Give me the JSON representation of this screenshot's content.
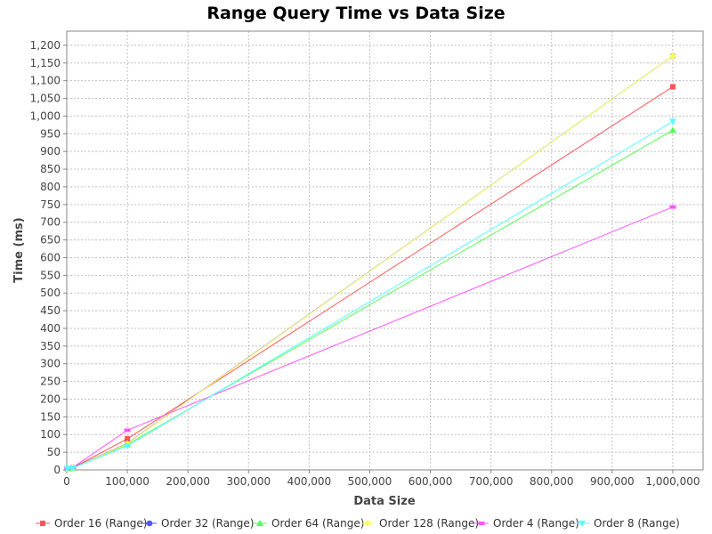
{
  "chart_data": {
    "type": "line",
    "title": "Range Query Time vs Data Size",
    "xlabel": "Data Size",
    "ylabel": "Time (ms)",
    "xlim": [
      0,
      1050000
    ],
    "ylim": [
      0,
      1240
    ],
    "x_ticks": [
      0,
      100000,
      200000,
      300000,
      400000,
      500000,
      600000,
      700000,
      800000,
      900000,
      1000000
    ],
    "x_tick_labels": [
      "0",
      "100,000",
      "200,000",
      "300,000",
      "400,000",
      "500,000",
      "600,000",
      "700,000",
      "800,000",
      "900,000",
      "1,000,000"
    ],
    "y_ticks": [
      0,
      50,
      100,
      150,
      200,
      250,
      300,
      350,
      400,
      450,
      500,
      550,
      600,
      650,
      700,
      750,
      800,
      850,
      900,
      950,
      1000,
      1050,
      1100,
      1150,
      1200
    ],
    "y_tick_labels": [
      "0",
      "50",
      "100",
      "150",
      "200",
      "250",
      "300",
      "350",
      "400",
      "450",
      "500",
      "550",
      "600",
      "650",
      "700",
      "750",
      "800",
      "850",
      "900",
      "950",
      "1,000",
      "1,050",
      "1,100",
      "1,150",
      "1,200"
    ],
    "grid": true,
    "legend_position": "bottom",
    "x": [
      1000,
      10000,
      100000,
      1000000
    ],
    "series": [
      {
        "name": "Order 16 (Range)",
        "values": [
          4,
          6,
          88,
          1083
        ],
        "color": "#ff5555",
        "marker": "square"
      },
      {
        "name": "Order 32 (Range)",
        "values": [
          4,
          6,
          75,
          1170
        ],
        "color": "#5555ff",
        "marker": "circle"
      },
      {
        "name": "Order 64 (Range)",
        "values": [
          4,
          5,
          72,
          960
        ],
        "color": "#55ff55",
        "marker": "triangle-up"
      },
      {
        "name": "Order 128 (Range)",
        "values": [
          4,
          5,
          74,
          1170
        ],
        "color": "#ffff55",
        "marker": "diamond"
      },
      {
        "name": "Order 4 (Range)",
        "values": [
          4,
          7,
          112,
          743
        ],
        "color": "#ff55ff",
        "marker": "rect-h"
      },
      {
        "name": "Order 8 (Range)",
        "values": [
          4,
          5,
          68,
          985
        ],
        "color": "#55ffff",
        "marker": "triangle-down"
      }
    ]
  }
}
